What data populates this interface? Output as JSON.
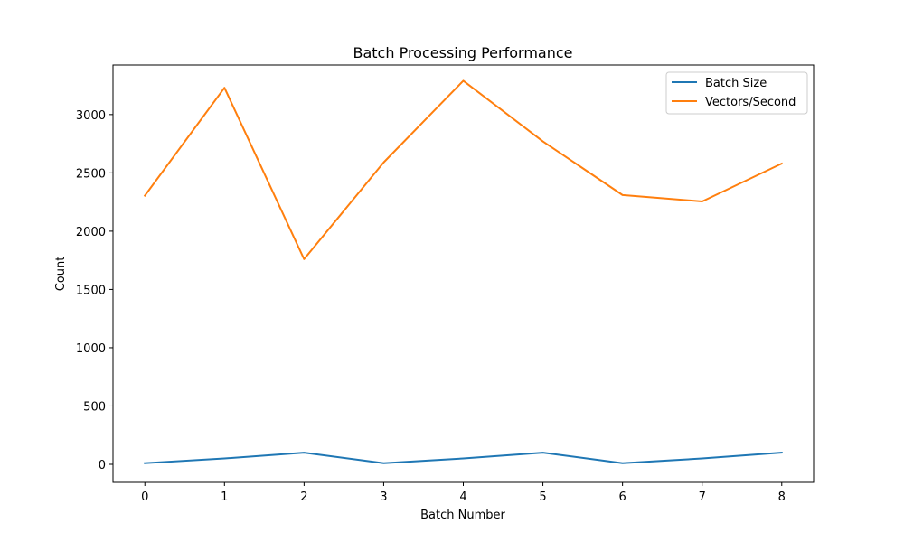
{
  "chart_data": {
    "type": "line",
    "title": "Batch Processing Performance",
    "xlabel": "Batch Number",
    "ylabel": "Count",
    "x": [
      0,
      1,
      2,
      3,
      4,
      5,
      6,
      7,
      8
    ],
    "xlim": [
      -0.4,
      8.4
    ],
    "ylim": [
      -155,
      3425
    ],
    "xticks": [
      0,
      1,
      2,
      3,
      4,
      5,
      6,
      7,
      8
    ],
    "yticks": [
      0,
      500,
      1000,
      1500,
      2000,
      2500,
      3000
    ],
    "grid": false,
    "legend_position": "top-right",
    "series": [
      {
        "name": "Batch Size",
        "color": "#1f77b4",
        "values": [
          10,
          50,
          100,
          10,
          50,
          100,
          10,
          50,
          100
        ]
      },
      {
        "name": "Vectors/Second",
        "color": "#ff7f0e",
        "values": [
          2305,
          3230,
          1760,
          2590,
          3290,
          2770,
          2310,
          2255,
          2580
        ]
      }
    ]
  }
}
